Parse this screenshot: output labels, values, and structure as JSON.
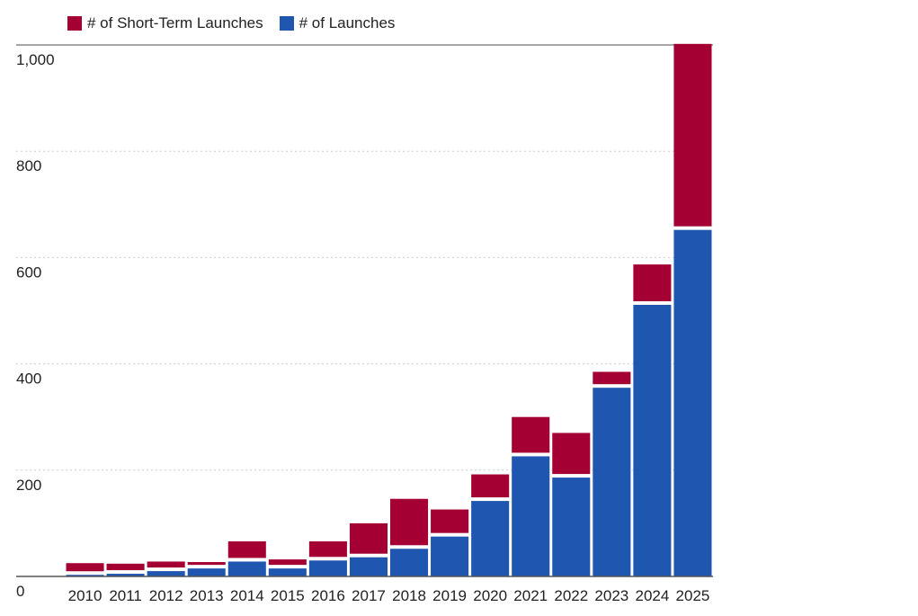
{
  "chart_data": {
    "type": "bar",
    "stacked": true,
    "title": "",
    "xlabel": "",
    "ylabel": "",
    "ylim": [
      0,
      1000
    ],
    "yticks": [
      0,
      200,
      400,
      600,
      800,
      1000
    ],
    "ytick_labels": [
      "0",
      "200",
      "400",
      "600",
      "800",
      "1,000"
    ],
    "categories": [
      "2010",
      "2011",
      "2012",
      "2013",
      "2014",
      "2015",
      "2016",
      "2017",
      "2018",
      "2019",
      "2020",
      "2021",
      "2022",
      "2023",
      "2024",
      "2025"
    ],
    "series": [
      {
        "name": "# of Launches",
        "color": "#1f56b0",
        "values": [
          3,
          5,
          10,
          15,
          28,
          15,
          30,
          36,
          52,
          75,
          142,
          226,
          186,
          355,
          511,
          652
        ]
      },
      {
        "name": "# of Short-Term Launches",
        "color": "#a50034",
        "values": [
          22,
          19,
          18,
          12,
          38,
          17,
          36,
          64,
          94,
          51,
          50,
          74,
          84,
          30,
          76,
          350
        ]
      }
    ],
    "legend": {
      "position": "top-left",
      "entries": [
        {
          "label": "# of Short-Term Launches",
          "color": "#a50034"
        },
        {
          "label": "# of Launches",
          "color": "#1f56b0"
        }
      ]
    },
    "grid": "dotted-horizontal"
  }
}
